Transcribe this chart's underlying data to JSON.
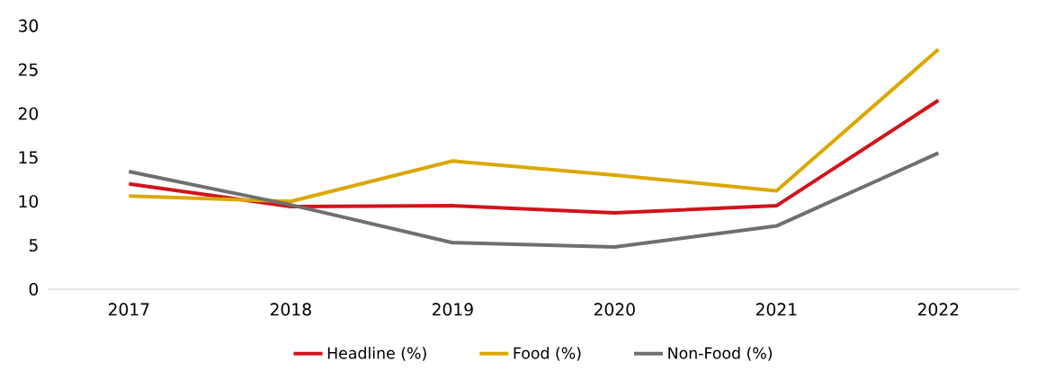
{
  "chart_data": {
    "type": "line",
    "categories": [
      "2017",
      "2018",
      "2019",
      "2020",
      "2021",
      "2022"
    ],
    "series": [
      {
        "name": "Headline (%)",
        "color": "#d0141c",
        "values": [
          12.0,
          9.4,
          9.5,
          8.7,
          9.5,
          21.5
        ]
      },
      {
        "name": "Food (%)",
        "color": "#dba800",
        "values": [
          10.6,
          10.0,
          14.6,
          13.0,
          11.2,
          27.3
        ]
      },
      {
        "name": "Non-Food (%)",
        "color": "#6f6f6f",
        "values": [
          13.4,
          9.6,
          5.3,
          4.8,
          7.2,
          15.5
        ]
      }
    ],
    "ylim": [
      0,
      30
    ],
    "yticks": [
      0,
      5,
      10,
      15,
      20,
      25,
      30
    ],
    "legend": "bottom",
    "marker": "none",
    "line_style": "solid"
  }
}
